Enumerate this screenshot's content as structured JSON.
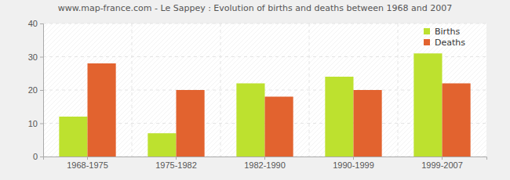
{
  "chart_data": {
    "type": "bar",
    "title": "www.map-france.com - Le Sappey : Evolution of births and deaths between 1968 and 2007",
    "categories": [
      "1968-1975",
      "1975-1982",
      "1982-1990",
      "1990-1999",
      "1999-2007"
    ],
    "series": [
      {
        "name": "Births",
        "color": "#bde12f",
        "values": [
          12,
          7,
          22,
          24,
          31
        ]
      },
      {
        "name": "Deaths",
        "color": "#e2632f",
        "values": [
          28,
          20,
          18,
          20,
          22
        ]
      }
    ],
    "ylim": [
      0,
      40
    ],
    "yticks": [
      0,
      10,
      20,
      30,
      40
    ],
    "grid": true,
    "legend": "upper-right"
  }
}
